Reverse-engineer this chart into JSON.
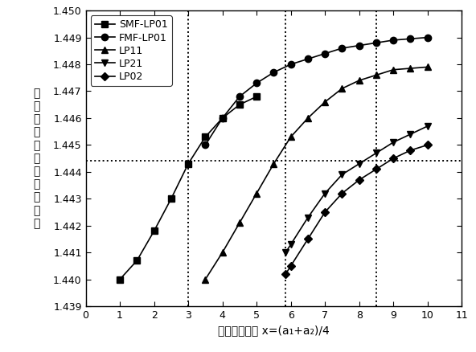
{
  "xlabel_cn": "内包层芯径：",
  "xlabel_math": " x=(a₁+a₂)/4",
  "ylabel_chars": [
    "不",
    "同",
    "模",
    "式",
    "有",
    "效",
    "折",
    "射",
    "率",
    "分",
    "布"
  ],
  "ylabel_suffix": "。",
  "xlim": [
    0,
    11
  ],
  "ylim": [
    1.439,
    1.45
  ],
  "yticks": [
    1.439,
    1.44,
    1.441,
    1.442,
    1.443,
    1.444,
    1.445,
    1.446,
    1.447,
    1.448,
    1.449,
    1.45
  ],
  "xticks": [
    0,
    1,
    2,
    3,
    4,
    5,
    6,
    7,
    8,
    9,
    10,
    11
  ],
  "hline_y": 1.4444,
  "vlines_x": [
    3.0,
    5.85,
    8.5
  ],
  "SMF_LP01_x": [
    1.0,
    1.5,
    2.0,
    2.5,
    3.0,
    3.5,
    4.0,
    4.5,
    5.0
  ],
  "SMF_LP01_y": [
    1.44,
    1.4407,
    1.4418,
    1.443,
    1.4443,
    1.4453,
    1.446,
    1.4465,
    1.4468
  ],
  "FMF_LP01_x": [
    3.5,
    4.0,
    4.5,
    5.0,
    5.5,
    6.0,
    6.5,
    7.0,
    7.5,
    8.0,
    8.5,
    9.0,
    9.5,
    10.0
  ],
  "FMF_LP01_y": [
    1.445,
    1.446,
    1.4468,
    1.4473,
    1.4477,
    1.448,
    1.4482,
    1.4484,
    1.4486,
    1.4487,
    1.4488,
    1.4489,
    1.44895,
    1.449
  ],
  "LP11_x": [
    3.5,
    4.0,
    4.5,
    5.0,
    5.5,
    6.0,
    6.5,
    7.0,
    7.5,
    8.0,
    8.5,
    9.0,
    9.5,
    10.0
  ],
  "LP11_y": [
    1.44,
    1.441,
    1.4421,
    1.4432,
    1.4443,
    1.4453,
    1.446,
    1.4466,
    1.4471,
    1.4474,
    1.4476,
    1.4478,
    1.44785,
    1.4479
  ],
  "LP21_x": [
    5.85,
    6.0,
    6.5,
    7.0,
    7.5,
    8.0,
    8.5,
    9.0,
    9.5,
    10.0
  ],
  "LP21_y": [
    1.441,
    1.4413,
    1.4423,
    1.4432,
    1.4439,
    1.4443,
    1.4447,
    1.4451,
    1.4454,
    1.4457
  ],
  "LP02_x": [
    5.85,
    6.0,
    6.5,
    7.0,
    7.5,
    8.0,
    8.5,
    9.0,
    9.5,
    10.0
  ],
  "LP02_y": [
    1.4402,
    1.4405,
    1.4415,
    1.4425,
    1.4432,
    1.4437,
    1.4441,
    1.4445,
    1.4448,
    1.445
  ],
  "line_color": "#000000",
  "bg_color": "#ffffff",
  "markersize": 6,
  "linewidth": 1.2
}
